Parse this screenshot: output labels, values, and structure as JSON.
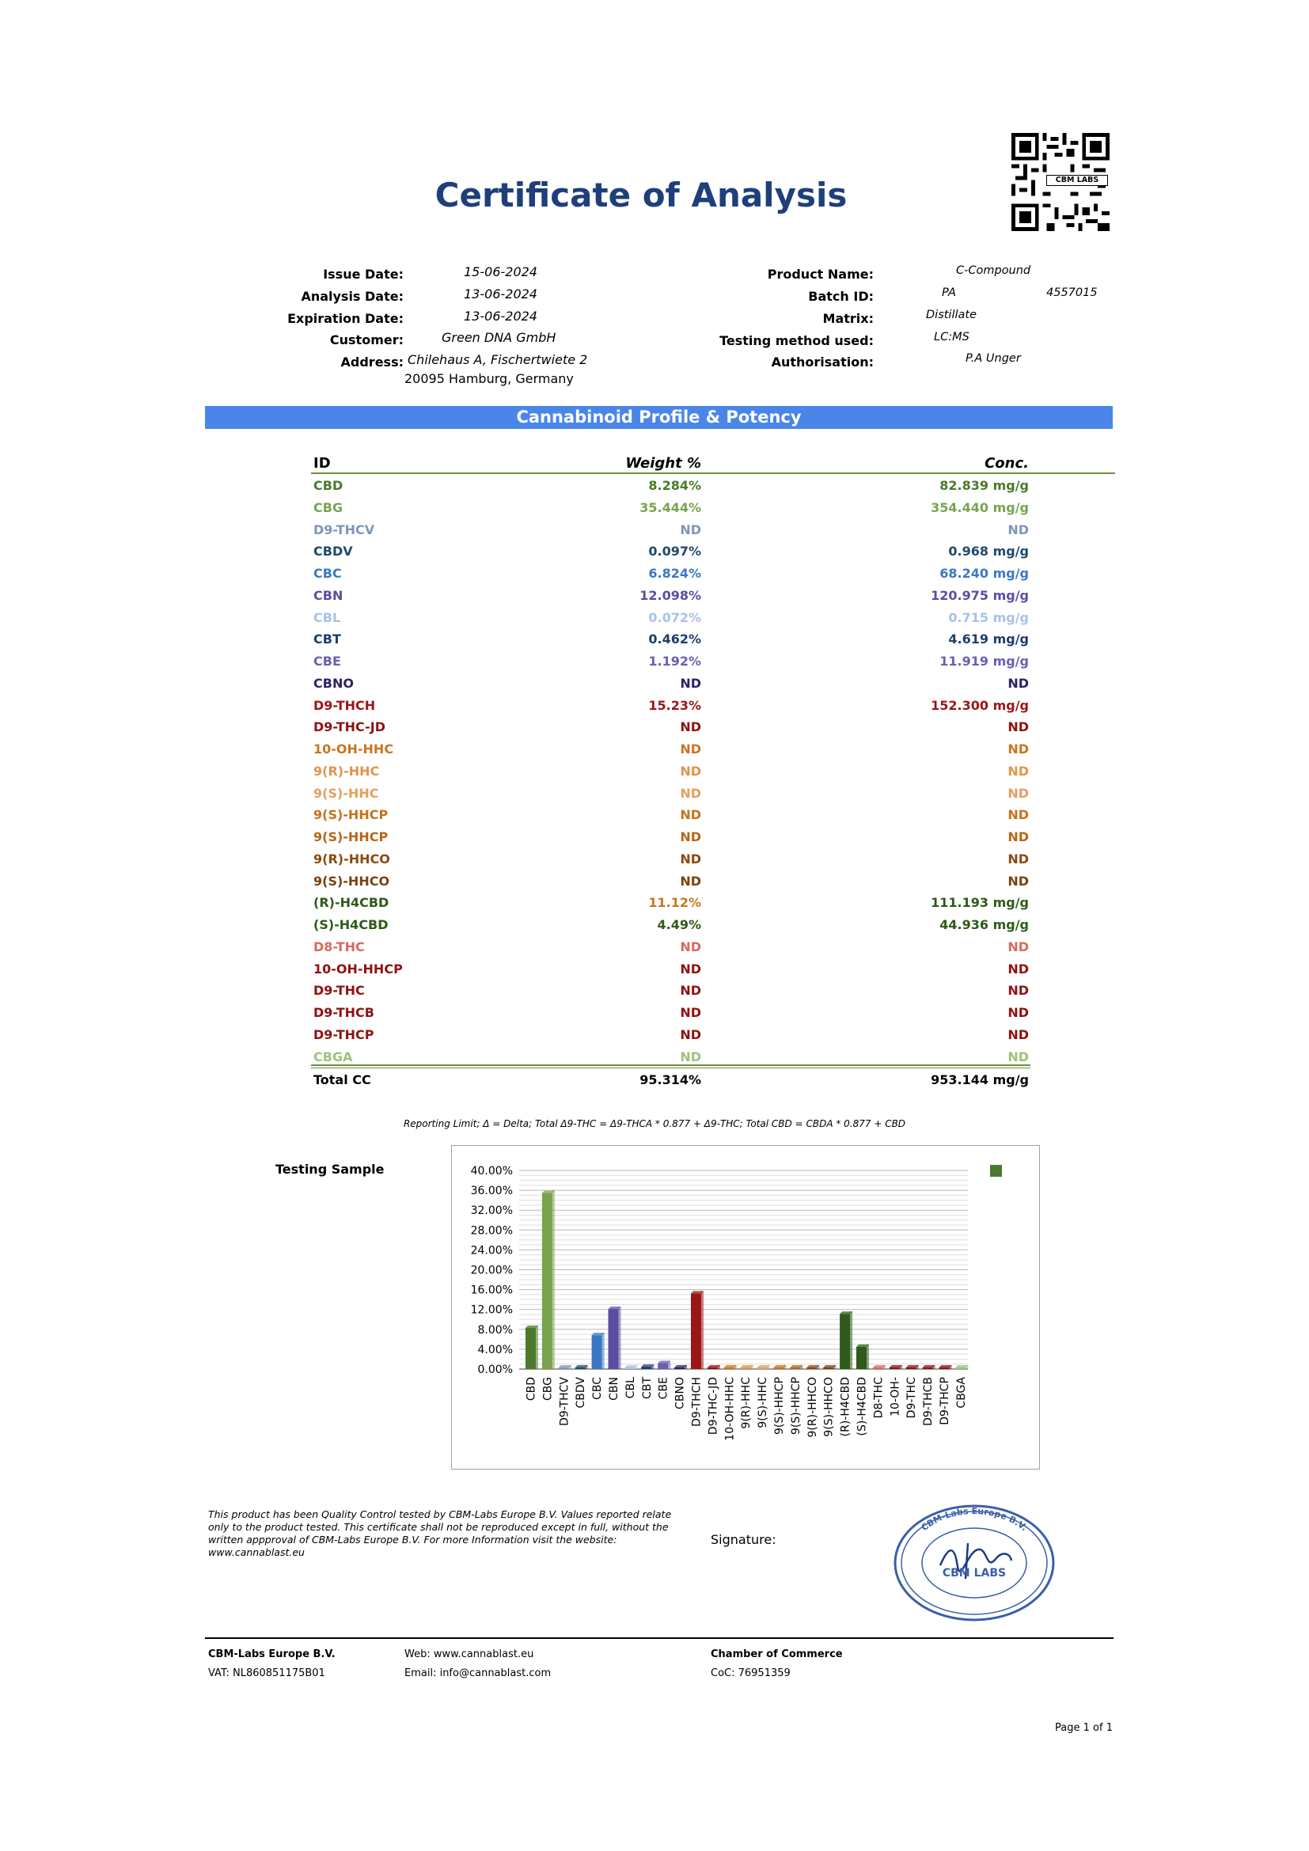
{
  "title": "Certificate of Analysis",
  "qr": {
    "caption": "CBM LABS"
  },
  "info_left": [
    {
      "label": "Issue Date:",
      "value": "15-06-2024"
    },
    {
      "label": "Analysis Date:",
      "value": "13-06-2024"
    },
    {
      "label": "Expiration Date:",
      "value": "13-06-2024"
    },
    {
      "label": "Customer:",
      "value": "Green DNA GmbH"
    },
    {
      "label": "Address:",
      "value": "Chilehaus A, Fischertwiete 2",
      "value2": "20095 Hamburg, Germany"
    }
  ],
  "info_right": [
    {
      "label": "Product Name:",
      "value": "C-Compound"
    },
    {
      "label": "Batch ID:",
      "value": "PA",
      "value_extra": "4557015"
    },
    {
      "label": "Matrix:",
      "value": "Distillate"
    },
    {
      "label": "Testing method used:",
      "value": "LC:MS"
    },
    {
      "label": "Authorisation:",
      "value": "P.A Unger"
    }
  ],
  "banner": "Cannabinoid Profile & Potency",
  "table": {
    "headers": {
      "id": "ID",
      "weight": "Weight %",
      "conc": "Conc."
    },
    "rows": [
      {
        "id": "CBD",
        "weight": "8.284%",
        "conc": "82.839 mg/g",
        "color": "#4a7a2b"
      },
      {
        "id": "CBG",
        "weight": "35.444%",
        "conc": "354.440 mg/g",
        "color": "#79a34f"
      },
      {
        "id": "D9-THCV",
        "weight": "ND",
        "conc": "ND",
        "color": "#7f96b8"
      },
      {
        "id": "CBDV",
        "weight": "0.097%",
        "conc": "0.968 mg/g",
        "color": "#1f4a6b"
      },
      {
        "id": "CBC",
        "weight": "6.824%",
        "conc": "68.240 mg/g",
        "color": "#3b78c4"
      },
      {
        "id": "CBN",
        "weight": "12.098%",
        "conc": "120.975 mg/g",
        "color": "#5a4ea3"
      },
      {
        "id": "CBL",
        "weight": "0.072%",
        "conc": "0.715 mg/g",
        "color": "#a9c2e8"
      },
      {
        "id": "CBT",
        "weight": "0.462%",
        "conc": "4.619 mg/g",
        "color": "#1f3d6b"
      },
      {
        "id": "CBE",
        "weight": "1.192%",
        "conc": "11.919 mg/g",
        "color": "#6b5fb0"
      },
      {
        "id": "CBNO",
        "weight": "ND",
        "conc": "ND",
        "color": "#2b2266"
      },
      {
        "id": "D9-THCH",
        "weight": "15.23%",
        "conc": "152.300 mg/g",
        "color": "#9c1616"
      },
      {
        "id": "D9-THC-JD",
        "weight": "ND",
        "conc": "ND",
        "color": "#8f1212"
      },
      {
        "id": "10-OH-HHC",
        "weight": "ND",
        "conc": "ND",
        "color": "#c8761f"
      },
      {
        "id": "9(R)-HHC",
        "weight": "ND",
        "conc": "ND",
        "color": "#e0954d"
      },
      {
        "id": "9(S)-HHC",
        "weight": "ND",
        "conc": "ND",
        "color": "#e3a060"
      },
      {
        "id": "9(S)-HHCP",
        "weight": "ND",
        "conc": "ND",
        "color": "#c7721c"
      },
      {
        "id": "9(S)-HHCP",
        "weight": "ND",
        "conc": "ND",
        "color": "#b8651a"
      },
      {
        "id": "9(R)-HHCO",
        "weight": "ND",
        "conc": "ND",
        "color": "#8a4a14"
      },
      {
        "id": "9(S)-HHCO",
        "weight": "ND",
        "conc": "ND",
        "color": "#7a4212"
      },
      {
        "id": "(R)-H4CBD",
        "weight": "11.12%",
        "conc": "111.193 mg/g",
        "color": "#2e5a1a",
        "weight_color": "#c8761f"
      },
      {
        "id": "(S)-H4CBD",
        "weight": "4.49%",
        "conc": "44.936 mg/g",
        "color": "#2e5a1a"
      },
      {
        "id": "D8-THC",
        "weight": "ND",
        "conc": "ND",
        "color": "#d96a5e"
      },
      {
        "id": "10-OH-HHCP",
        "weight": "ND",
        "conc": "ND",
        "color": "#8f1212"
      },
      {
        "id": "D9-THC",
        "weight": "ND",
        "conc": "ND",
        "color": "#8f1212"
      },
      {
        "id": "D9-THCB",
        "weight": "ND",
        "conc": "ND",
        "color": "#8f1212"
      },
      {
        "id": "D9-THCP",
        "weight": "ND",
        "conc": "ND",
        "color": "#8f1212"
      },
      {
        "id": "CBGA",
        "weight": "ND",
        "conc": "ND",
        "color": "#9cc37a"
      }
    ],
    "total": {
      "id": "Total CC",
      "weight": "95.314%",
      "conc": "953.144 mg/g"
    }
  },
  "footnote": "Reporting Limit; Δ = Delta; Total Δ9-THC = Δ9-THCA * 0.877 + Δ9-THC; Total CBD = CBDA * 0.877 + CBD",
  "chart_label": "Testing Sample",
  "chart_data": {
    "type": "bar",
    "categories": [
      "CBD",
      "CBG",
      "D9-THCV",
      "CBDV",
      "CBC",
      "CBN",
      "CBL",
      "CBT",
      "CBE",
      "CBNO",
      "D9-THCH",
      "D9-THC-JD",
      "10-OH-HHC",
      "9(R)-HHC",
      "9(S)-HHC",
      "9(S)-HHCP",
      "9(S)-HHCP",
      "9(R)-HHCO",
      "9(S)-HHCO",
      "(R)-H4CBD",
      "(S)-H4CBD",
      "D8-THC",
      "10-OH-",
      "D9-THC",
      "D9-THCB",
      "D9-THCP",
      "CBGA"
    ],
    "values": [
      8.284,
      35.444,
      0,
      0.097,
      6.824,
      12.098,
      0.072,
      0.462,
      1.192,
      0,
      15.23,
      0,
      0,
      0,
      0,
      0,
      0,
      0,
      0,
      11.12,
      4.49,
      0,
      0,
      0,
      0,
      0,
      0
    ],
    "colors": [
      "#4a7a2b",
      "#79a34f",
      "#7f96b8",
      "#1f4a6b",
      "#3b78c4",
      "#5a4ea3",
      "#a9c2e8",
      "#1f3d6b",
      "#6b5fb0",
      "#2b2266",
      "#9c1616",
      "#8f1212",
      "#c8761f",
      "#e0954d",
      "#e3a060",
      "#c7721c",
      "#b8651a",
      "#8a4a14",
      "#7a4212",
      "#2e5a1a",
      "#2e5a1a",
      "#d96a5e",
      "#8f1212",
      "#8f1212",
      "#8f1212",
      "#8f1212",
      "#9cc37a"
    ],
    "yticks": [
      "40.00%",
      "36.00%",
      "32.00%",
      "28.00%",
      "24.00%",
      "20.00%",
      "16.00%",
      "12.00%",
      "8.00%",
      "4.00%",
      "0.00%"
    ],
    "ylim": [
      0,
      40
    ],
    "legend_color": "#4a7a2b",
    "legend_placement": "top-right"
  },
  "disclaimer": "This product has been Quality Control tested by CBM-Labs Europe B.V. Values reported relate only to the product tested. This certificate shall not be reproduced except in full, without the written appproval of CBM-Labs Europe B.V. For more Information visit the website: www.cannablast.eu",
  "signature_label": "Signature:",
  "stamp": {
    "top_text": "CBM-Labs Europe B.V.",
    "center_text": "CBM LABS"
  },
  "footer": {
    "company": "CBM-Labs Europe B.V.",
    "vat": "VAT: NL860851175B01",
    "web": "Web: www.cannablast.eu",
    "email": "Email: info@cannablast.com",
    "coc_title": "Chamber of Commerce",
    "coc": "CoC:  76951359"
  },
  "page": "Page 1 of 1"
}
